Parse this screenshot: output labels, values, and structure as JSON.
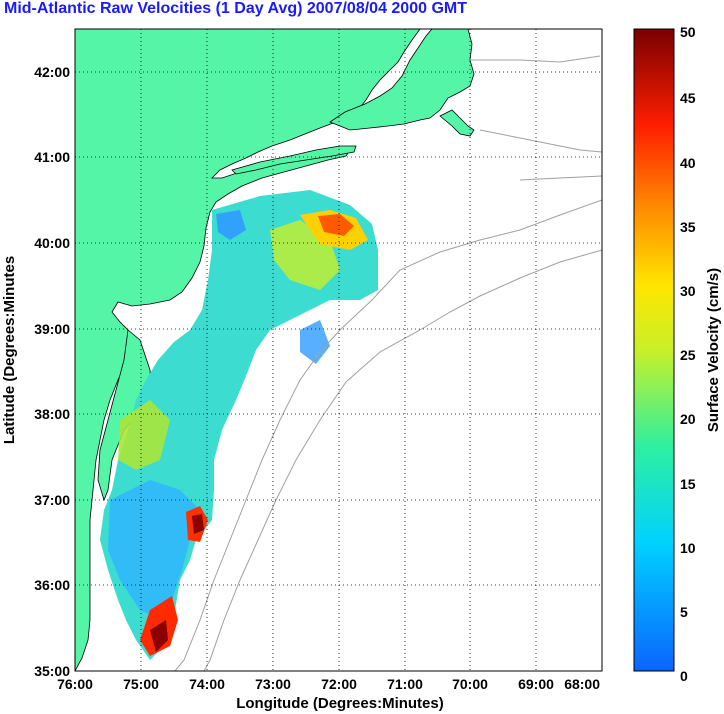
{
  "title": "Mid-Atlantic Raw Velocities (1 Day Avg) 2007/08/04 2000 GMT",
  "map": {
    "xlabel": "Longitude (Degrees:Minutes)",
    "ylabel": "Latitude (Degrees:Minutes",
    "lon_range": [
      -76,
      -68
    ],
    "lat_range": [
      35,
      42.5
    ],
    "lon_ticks": [
      "76:00",
      "75:00",
      "74:00",
      "73:00",
      "72:00",
      "71:00",
      "70:00",
      "69:00",
      "68:00"
    ],
    "lat_ticks": [
      "35:00",
      "36:00",
      "37:00",
      "38:00",
      "39:00",
      "40:00",
      "41:00",
      "42:00"
    ],
    "land_color": "#55f5a8",
    "grid": "dotted"
  },
  "colorbar": {
    "label": "Surface Velocity (cm/s)",
    "min": 0,
    "max": 50,
    "ticks": [
      "0",
      "5",
      "10",
      "15",
      "20",
      "25",
      "30",
      "35",
      "40",
      "45",
      "50"
    ]
  }
}
